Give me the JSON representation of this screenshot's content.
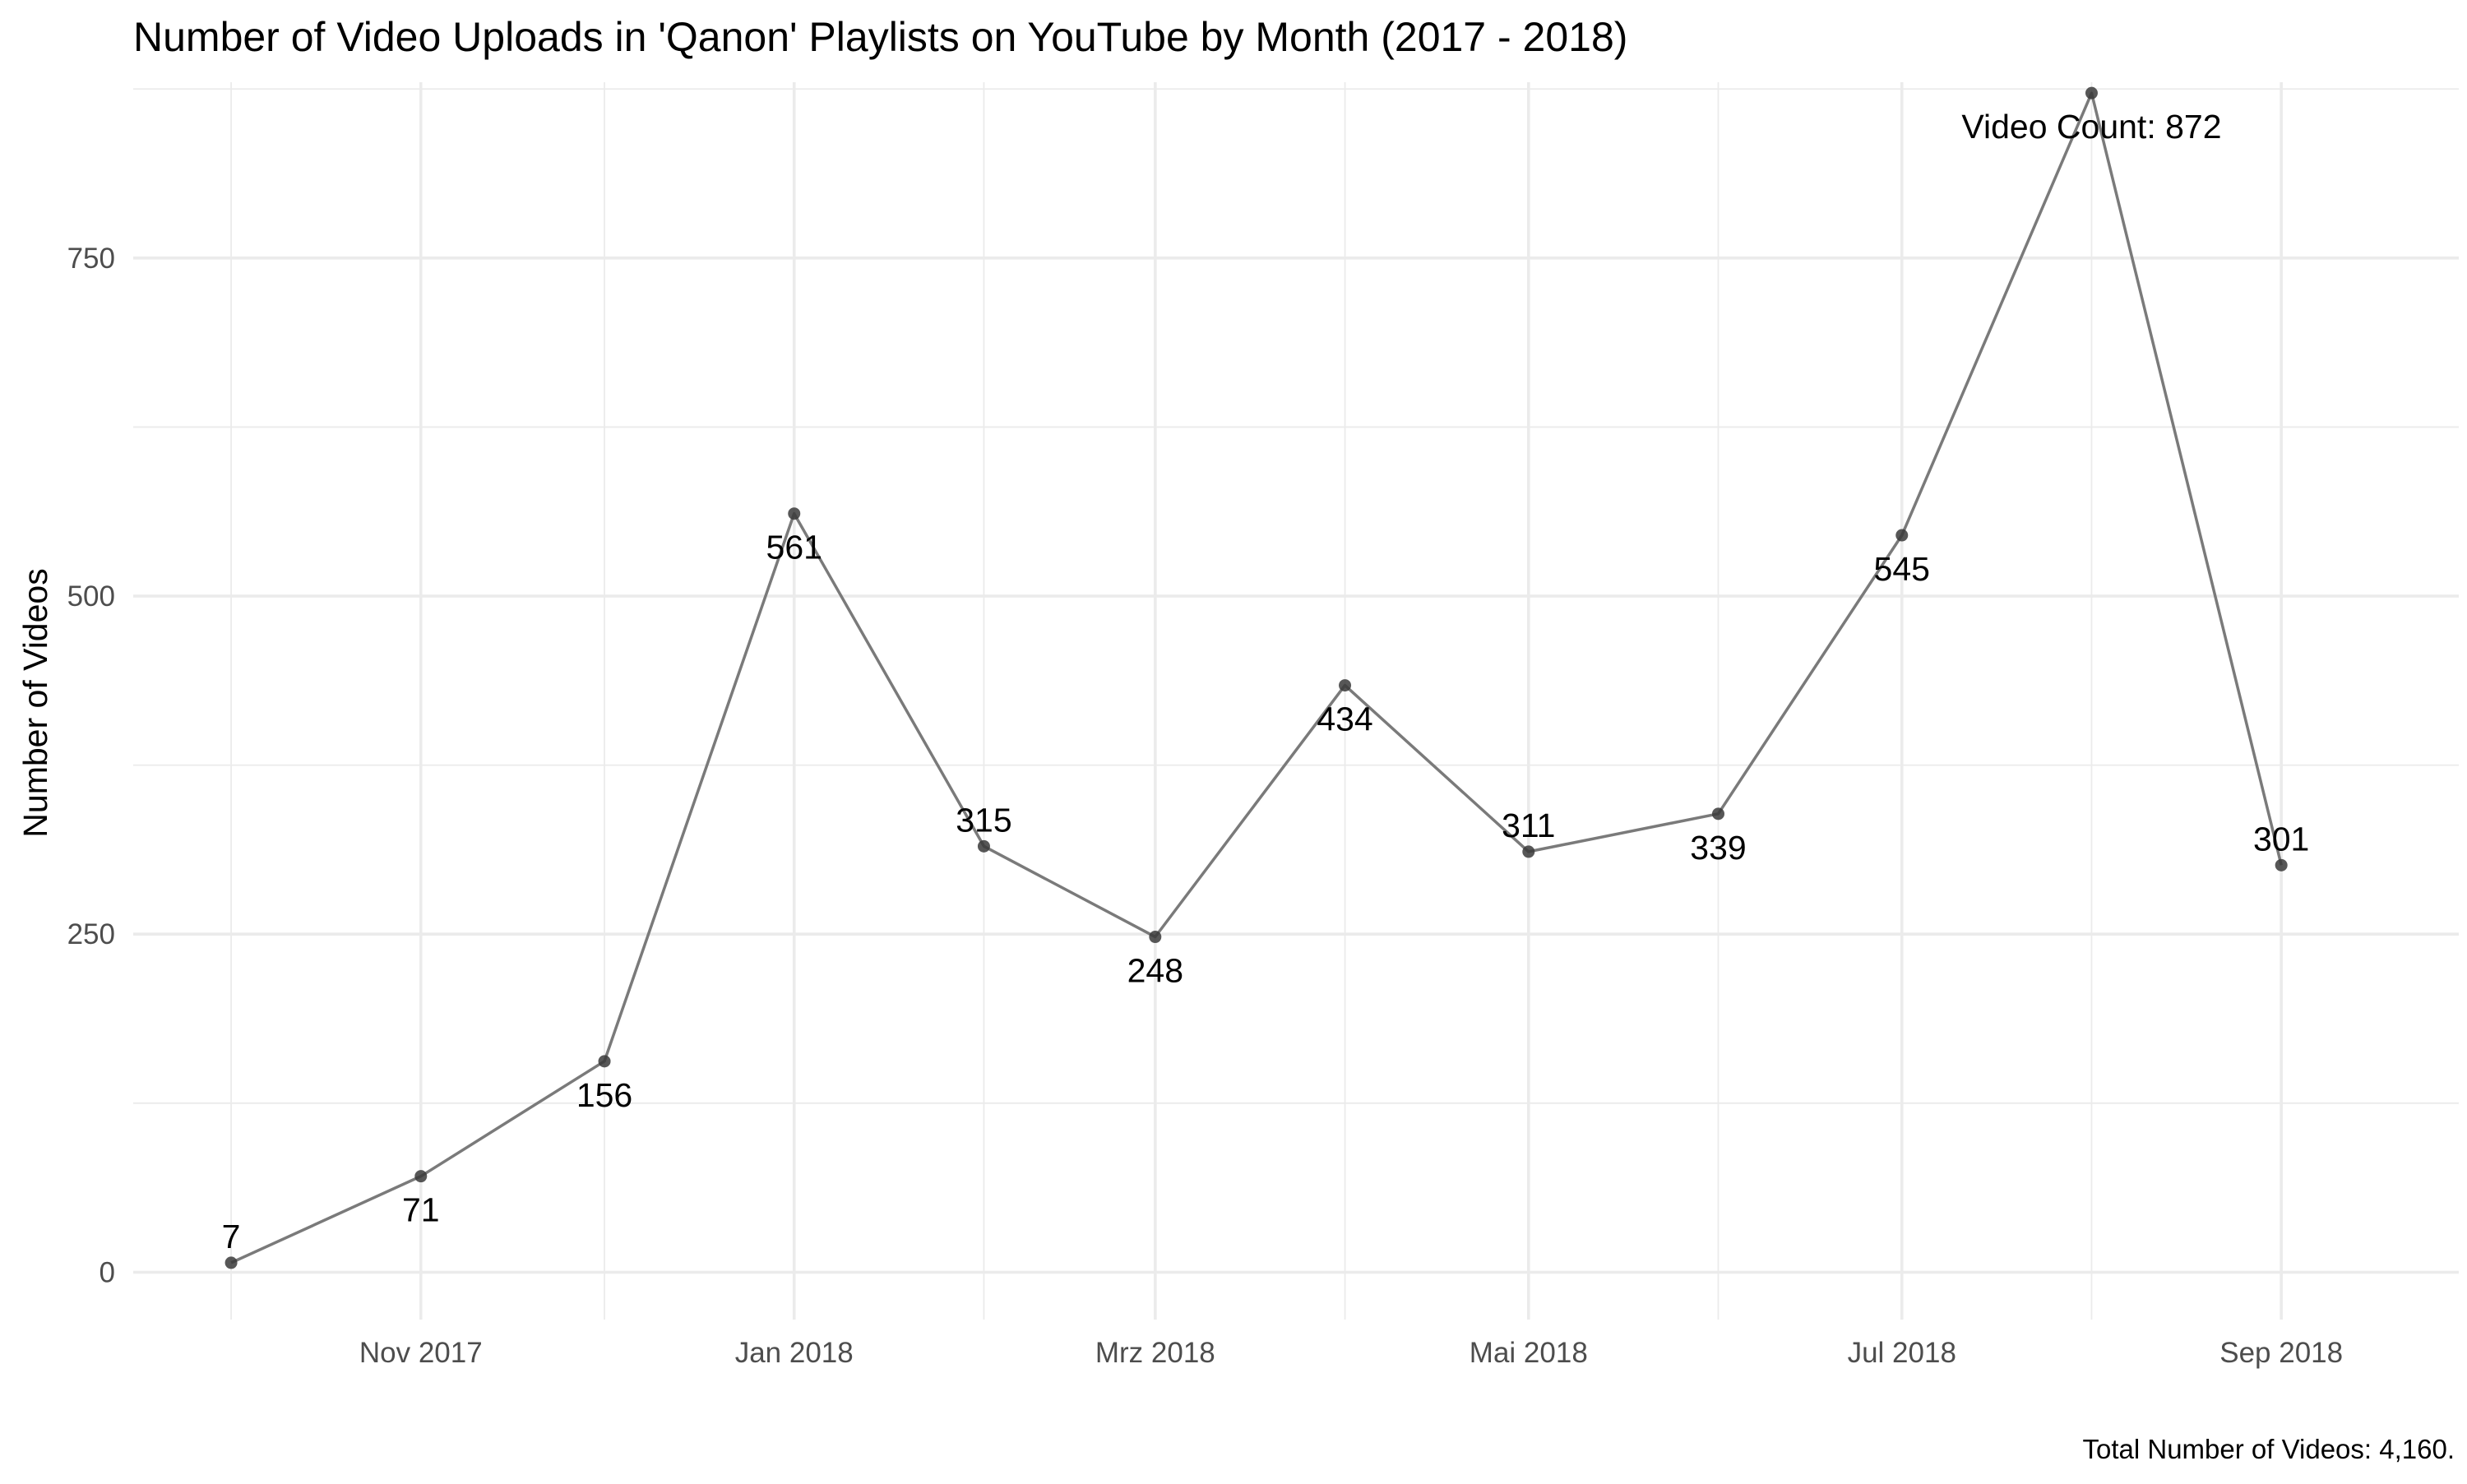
{
  "chart_data": {
    "type": "line",
    "title": "Number of Video Uploads in 'Qanon' Playlists on YouTube by Month (2017 - 2018)",
    "xlabel": "",
    "ylabel": "Number of Videos",
    "caption": "Total Number of Videos: 4,160.",
    "x": [
      "2017-10",
      "2017-11",
      "2017-12",
      "2018-01",
      "2018-02",
      "2018-03",
      "2018-04",
      "2018-05",
      "2018-06",
      "2018-07",
      "2018-08",
      "2018-09"
    ],
    "values": [
      7,
      71,
      156,
      561,
      315,
      248,
      434,
      311,
      339,
      545,
      872,
      301
    ],
    "point_labels": [
      "7",
      "71",
      "156",
      "561",
      "315",
      "248",
      "434",
      "311",
      "339",
      "545",
      "Video Count: 872",
      "301"
    ],
    "point_label_side": [
      "above",
      "below",
      "below",
      "below",
      "above",
      "below",
      "below",
      "above",
      "below",
      "below",
      "below",
      "above"
    ],
    "x_ticks": [
      {
        "x": "2017-11",
        "label": "Nov 2017"
      },
      {
        "x": "2018-01",
        "label": "Jan 2018"
      },
      {
        "x": "2018-03",
        "label": "Mrz 2018"
      },
      {
        "x": "2018-05",
        "label": "Mai 2018"
      },
      {
        "x": "2018-07",
        "label": "Jul 2018"
      },
      {
        "x": "2018-09",
        "label": "Sep 2018"
      }
    ],
    "y_ticks": [
      0,
      250,
      500,
      750
    ],
    "ylim": [
      -35,
      880
    ],
    "xlim": [
      "2017-09-15",
      "2018-09-30"
    ],
    "grid": true,
    "legend": "none",
    "line_color": "#7a7a7a",
    "point_color": "#3a3a3a",
    "label_color": "#000000"
  }
}
